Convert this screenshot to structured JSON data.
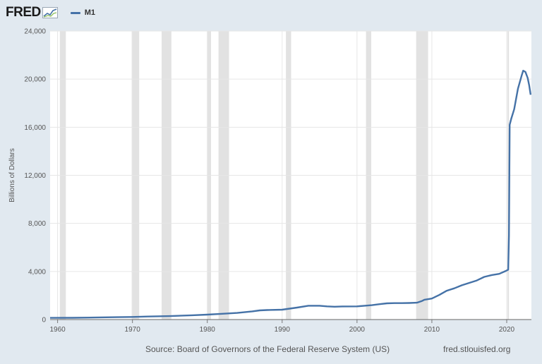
{
  "header": {
    "logo_text": "FRED",
    "legend_label": "M1"
  },
  "colors": {
    "series": "#4572a7",
    "recession": "#e2e2e2",
    "grid": "#e6e6e6",
    "background": "#e1e9f0",
    "plot": "#ffffff"
  },
  "footer": {
    "source": "Source: Board of Governors of the Federal Reserve System (US)",
    "url": "fred.stlouisfed.org"
  },
  "chart_data": {
    "type": "line",
    "title": "",
    "ylabel": "Billions of Dollars",
    "xlim": [
      1959,
      2023.3
    ],
    "ylim": [
      0,
      24000
    ],
    "x_ticks": [
      1960,
      1970,
      1980,
      1990,
      2000,
      2010,
      2020
    ],
    "x_tick_labels": [
      "1960",
      "1970",
      "1980",
      "1990",
      "2000",
      "2010",
      "2020"
    ],
    "y_ticks": [
      0,
      4000,
      8000,
      12000,
      16000,
      20000,
      24000
    ],
    "y_tick_labels": [
      "0",
      "4,000",
      "8,000",
      "12,000",
      "16,000",
      "20,000",
      "24,000"
    ],
    "grid": true,
    "recessions": [
      [
        1960.3,
        1961.1
      ],
      [
        1969.9,
        1970.9
      ],
      [
        1973.9,
        1975.2
      ],
      [
        1980.0,
        1980.5
      ],
      [
        1981.5,
        1982.9
      ],
      [
        1990.5,
        1991.2
      ],
      [
        2001.2,
        2001.9
      ],
      [
        2007.9,
        2009.5
      ],
      [
        2020.1,
        2020.3
      ]
    ],
    "series": [
      {
        "name": "M1",
        "x": [
          1959.0,
          1962.0,
          1965.0,
          1968.0,
          1970.0,
          1972.0,
          1975.0,
          1978.0,
          1980.0,
          1982.0,
          1984.0,
          1986.0,
          1987.0,
          1988.0,
          1990.0,
          1992.0,
          1993.5,
          1995.0,
          1996.0,
          1997.0,
          1998.0,
          2000.0,
          2001.0,
          2002.0,
          2003.0,
          2004.0,
          2005.0,
          2006.0,
          2007.0,
          2008.0,
          2008.7,
          2009.0,
          2010.0,
          2011.0,
          2012.0,
          2013.0,
          2014.0,
          2015.0,
          2016.0,
          2017.0,
          2018.0,
          2019.0,
          2019.9,
          2020.2,
          2020.3,
          2020.4,
          2020.6,
          2021.0,
          2021.5,
          2022.0,
          2022.2,
          2022.5,
          2022.8,
          2023.0,
          2023.2
        ],
        "values": [
          140,
          147,
          170,
          200,
          215,
          250,
          290,
          360,
          410,
          480,
          550,
          680,
          760,
          790,
          820,
          1000,
          1150,
          1150,
          1100,
          1070,
          1090,
          1100,
          1150,
          1200,
          1280,
          1350,
          1370,
          1370,
          1380,
          1400,
          1550,
          1650,
          1750,
          2050,
          2400,
          2600,
          2850,
          3050,
          3250,
          3550,
          3700,
          3800,
          4050,
          4150,
          7000,
          16200,
          16700,
          17500,
          19200,
          20300,
          20700,
          20600,
          20100,
          19500,
          18700
        ]
      }
    ]
  }
}
